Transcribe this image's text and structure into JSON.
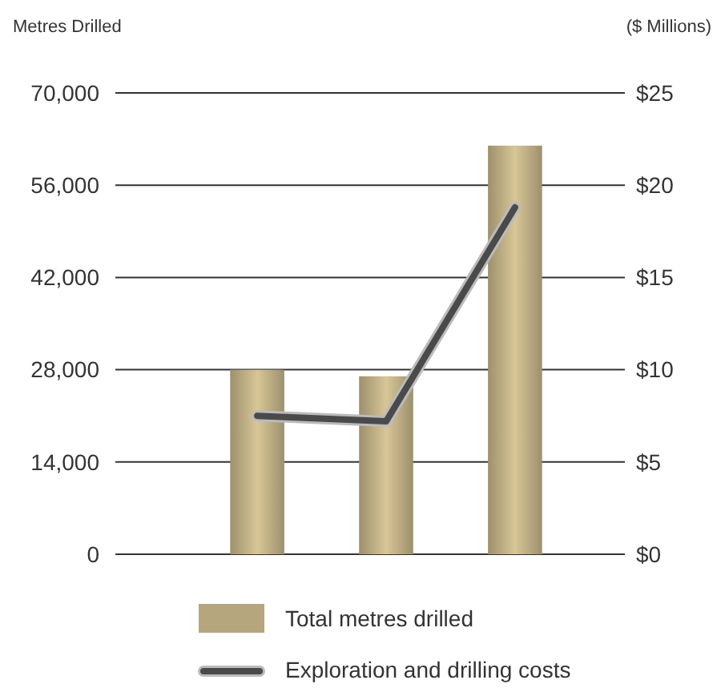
{
  "chart_data": {
    "type": "bar",
    "ylabel": "Metres Drilled",
    "y2label": "($ Millions)",
    "categories": [
      null,
      null,
      null
    ],
    "series": [
      {
        "name": "Total metres drilled",
        "color": "#b5a67e",
        "values": [
          28000,
          27000,
          62000
        ]
      },
      {
        "name": "Exploration and drilling costs",
        "type": "line",
        "axis": "y2",
        "color": "#4a4a4a",
        "values": [
          7.5,
          7.2,
          18.8
        ]
      }
    ],
    "ylim": [
      0,
      70000
    ],
    "yticks": [
      0,
      {
        "value": 14000,
        "label": "14,000"
      },
      {
        "value": 28000,
        "label": "28,000"
      },
      {
        "value": 42000,
        "label": "42,000"
      },
      {
        "value": 56000,
        "label": "56,000"
      },
      {
        "value": 70000,
        "label": "70,000"
      }
    ],
    "y2lim": [
      0,
      25
    ],
    "y2ticks": [
      {
        "value": 0,
        "label": "$0"
      },
      {
        "value": 5,
        "label": "$5"
      },
      {
        "value": 10,
        "label": "$10"
      },
      {
        "value": 15,
        "label": "$15"
      },
      {
        "value": 20,
        "label": "$20"
      },
      {
        "value": 25,
        "label": "$25"
      }
    ],
    "grid": "y",
    "legend": "bottom",
    "line_style": "solid",
    "marker": "none"
  }
}
